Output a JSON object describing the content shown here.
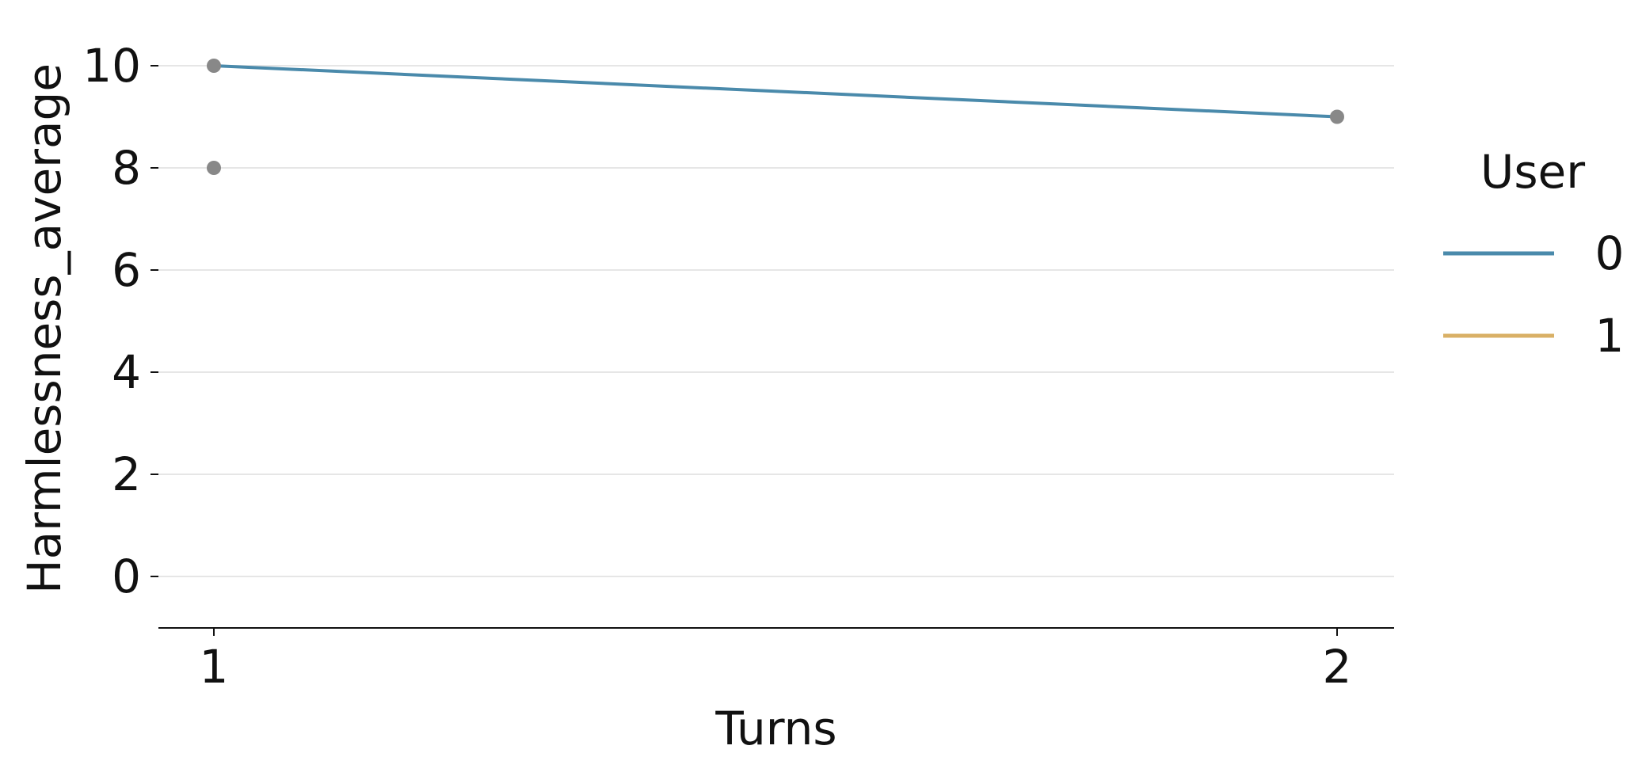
{
  "chart_data": {
    "type": "line",
    "xlabel": "Turns",
    "ylabel": "Harmlessness_average",
    "x_ticks": [
      "1",
      "2"
    ],
    "y_ticks": [
      "0",
      "2",
      "4",
      "6",
      "8",
      "10"
    ],
    "xlim": [
      0.95,
      2.05
    ],
    "ylim": [
      -1,
      11
    ],
    "grid": "horizontal",
    "legend": {
      "title": "User",
      "placement": "right",
      "entries": [
        {
          "label": "0",
          "color": "#4a8aab"
        },
        {
          "label": "1",
          "color": "#d9b066"
        }
      ]
    },
    "series": [
      {
        "name": "0",
        "color": "#4a8aab",
        "points": [
          {
            "x": 1,
            "y": 10
          },
          {
            "x": 2,
            "y": 9
          }
        ]
      },
      {
        "name": "1",
        "color": "#d9b066",
        "points": []
      }
    ],
    "points": [
      {
        "x": 1,
        "y": 10
      },
      {
        "x": 1,
        "y": 8
      },
      {
        "x": 2,
        "y": 9
      }
    ],
    "point_color": "#888888"
  }
}
